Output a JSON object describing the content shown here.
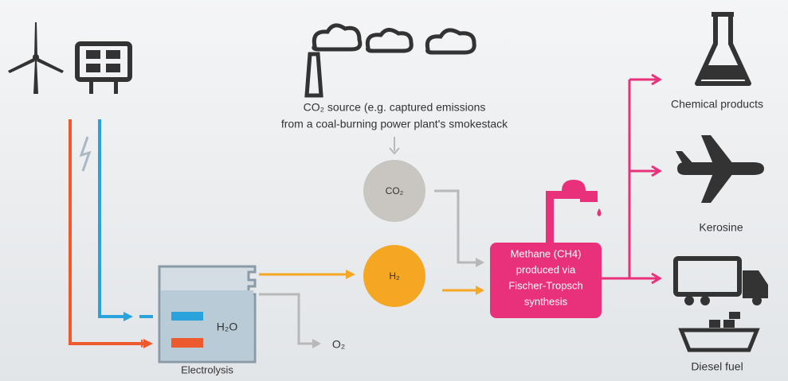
{
  "co2_source": {
    "lines": [
      "CO₂ source (e.g. captured emissions",
      "from a coal-burning power plant's smokestack"
    ]
  },
  "nodes": [
    {
      "label": "CO₂"
    },
    {
      "label": "H₂"
    },
    {
      "label": "O₂"
    }
  ],
  "electrolysis": {
    "label": "Electrolysis",
    "water": "H₂O",
    "minus": "–",
    "plus": "+"
  },
  "methane": {
    "lines": [
      "Methane (CH4)",
      "produced via",
      "Fischer-Tropsch",
      "synthesis"
    ]
  },
  "products": [
    {
      "label": "Chemical products"
    },
    {
      "label": "Kerosine"
    },
    {
      "label": "Diesel fuel"
    }
  ]
}
